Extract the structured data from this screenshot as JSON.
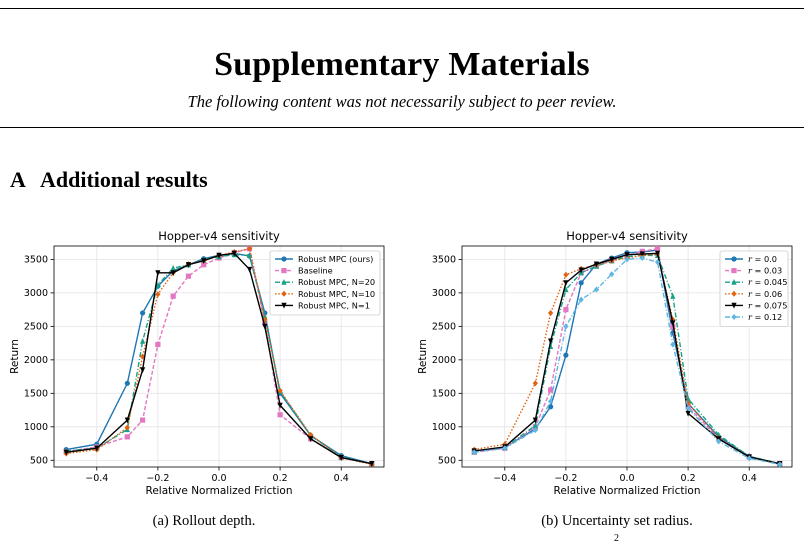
{
  "header": {
    "title": "Supplementary Materials",
    "subtitle": "The following content was not necessarily subject to peer review."
  },
  "section": {
    "number": "A",
    "title": "Additional results"
  },
  "captions": [
    "(a) Rollout depth.",
    "(b) Uncertainty set radius."
  ],
  "page_number": "2",
  "chart_data": [
    {
      "type": "line",
      "title": "Hopper-v4 sensitivity",
      "xlabel": "Relative Normalized Friction",
      "ylabel": "Return",
      "xlim": [
        -0.54,
        0.54
      ],
      "ylim": [
        400,
        3700
      ],
      "xticks": [
        -0.4,
        -0.2,
        0.0,
        0.2,
        0.4
      ],
      "xtick_labels": [
        "−0.4",
        "−0.2",
        "0.0",
        "0.2",
        "0.4"
      ],
      "yticks": [
        500,
        1000,
        1500,
        2000,
        2500,
        3000,
        3500
      ],
      "grid": true,
      "legend_position": "upper right",
      "x": [
        -0.5,
        -0.4,
        -0.3,
        -0.25,
        -0.2,
        -0.15,
        -0.1,
        -0.05,
        0.0,
        0.05,
        0.1,
        0.15,
        0.2,
        0.3,
        0.4,
        0.5
      ],
      "series": [
        {
          "name": "Robust MPC (ours)",
          "color": "#1f77b4",
          "marker": "circle",
          "dash": "solid",
          "values": [
            660,
            740,
            1650,
            2700,
            3100,
            3330,
            3420,
            3510,
            3560,
            3590,
            3550,
            2700,
            1500,
            870,
            570,
            450
          ]
        },
        {
          "name": "Baseline",
          "color": "#e377c2",
          "marker": "square",
          "dash": "dashed",
          "values": [
            630,
            700,
            850,
            1100,
            2230,
            2950,
            3250,
            3420,
            3520,
            3600,
            3660,
            2550,
            1180,
            820,
            540,
            450
          ]
        },
        {
          "name": "Robust MPC, N=20",
          "color": "#17a288",
          "marker": "triangle",
          "dash": "dashdot",
          "values": [
            640,
            680,
            960,
            2280,
            3120,
            3370,
            3420,
            3490,
            3540,
            3570,
            3560,
            2650,
            1530,
            870,
            550,
            450
          ]
        },
        {
          "name": "Robust MPC, N=10",
          "color": "#e0620e",
          "marker": "diamond",
          "dash": "dotted",
          "values": [
            600,
            660,
            990,
            2050,
            2980,
            3300,
            3430,
            3480,
            3560,
            3610,
            3660,
            2600,
            1540,
            880,
            540,
            440
          ]
        },
        {
          "name": "Robust MPC, N=1",
          "color": "#000000",
          "marker": "triangle-down",
          "dash": "solid",
          "values": [
            620,
            680,
            1100,
            1850,
            3300,
            3300,
            3420,
            3480,
            3560,
            3590,
            3350,
            2500,
            1320,
            820,
            540,
            450
          ]
        }
      ]
    },
    {
      "type": "line",
      "title": "Hopper-v4 sensitivity",
      "xlabel": "Relative Normalized Friction",
      "ylabel": "Return",
      "xlim": [
        -0.54,
        0.54
      ],
      "ylim": [
        400,
        3700
      ],
      "xticks": [
        -0.4,
        -0.2,
        0.0,
        0.2,
        0.4
      ],
      "xtick_labels": [
        "−0.4",
        "−0.2",
        "0.0",
        "0.2",
        "0.4"
      ],
      "yticks": [
        500,
        1000,
        1500,
        2000,
        2500,
        3000,
        3500
      ],
      "grid": true,
      "legend_position": "upper right",
      "x": [
        -0.5,
        -0.4,
        -0.3,
        -0.25,
        -0.2,
        -0.15,
        -0.1,
        -0.05,
        0.0,
        0.05,
        0.1,
        0.15,
        0.2,
        0.3,
        0.4,
        0.5
      ],
      "series": [
        {
          "name": "r = 0.0",
          "color": "#1f77b4",
          "marker": "circle",
          "dash": "solid",
          "values": [
            640,
            690,
            970,
            1300,
            2070,
            3150,
            3430,
            3520,
            3600,
            3610,
            3640,
            2400,
            1350,
            850,
            560,
            440
          ]
        },
        {
          "name": "r = 0.03",
          "color": "#e377c2",
          "marker": "square",
          "dash": "dashed",
          "values": [
            620,
            680,
            1000,
            1550,
            2750,
            3300,
            3400,
            3480,
            3550,
            3620,
            3660,
            2500,
            1300,
            830,
            550,
            450
          ]
        },
        {
          "name": "r = 0.045",
          "color": "#17a288",
          "marker": "triangle",
          "dash": "dashdot",
          "values": [
            630,
            690,
            1020,
            2200,
            3050,
            3300,
            3400,
            3480,
            3540,
            3560,
            3560,
            2950,
            1420,
            880,
            560,
            450
          ]
        },
        {
          "name": "r = 0.06",
          "color": "#e0620e",
          "marker": "diamond",
          "dash": "dotted",
          "values": [
            660,
            740,
            1650,
            2700,
            3270,
            3360,
            3420,
            3480,
            3520,
            3560,
            3580,
            2600,
            1350,
            830,
            550,
            440
          ]
        },
        {
          "name": "r = 0.075",
          "color": "#000000",
          "marker": "triangle-down",
          "dash": "solid",
          "values": [
            640,
            700,
            1100,
            2280,
            3150,
            3340,
            3430,
            3500,
            3570,
            3580,
            3590,
            2550,
            1200,
            820,
            550,
            450
          ]
        },
        {
          "name": "r = 0.12",
          "color": "#5fb6e2",
          "marker": "diamond",
          "dash": "dashdot",
          "values": [
            620,
            680,
            950,
            1380,
            2500,
            2900,
            3050,
            3280,
            3500,
            3520,
            3460,
            2230,
            1280,
            780,
            530,
            440
          ]
        }
      ]
    }
  ]
}
